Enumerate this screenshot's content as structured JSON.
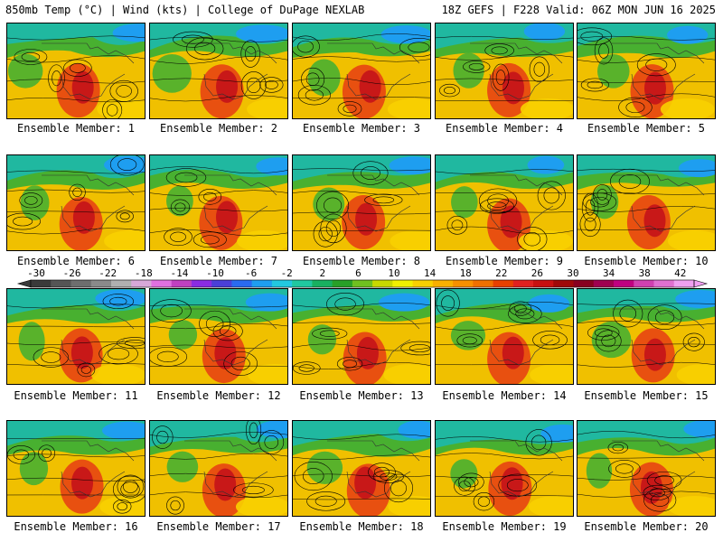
{
  "header": {
    "left": "850mb Temp (°C) | Wind (kts) | College of DuPage NEXLAB",
    "right": "18Z GEFS | F228 Valid: 06Z MON JUN 16 2025"
  },
  "members": [
    {
      "label": "Ensemble Member: 1"
    },
    {
      "label": "Ensemble Member: 2"
    },
    {
      "label": "Ensemble Member: 3"
    },
    {
      "label": "Ensemble Member: 4"
    },
    {
      "label": "Ensemble Member: 5"
    },
    {
      "label": "Ensemble Member: 6"
    },
    {
      "label": "Ensemble Member: 7"
    },
    {
      "label": "Ensemble Member: 8"
    },
    {
      "label": "Ensemble Member: 9"
    },
    {
      "label": "Ensemble Member: 10"
    },
    {
      "label": "Ensemble Member: 11"
    },
    {
      "label": "Ensemble Member: 12"
    },
    {
      "label": "Ensemble Member: 13"
    },
    {
      "label": "Ensemble Member: 14"
    },
    {
      "label": "Ensemble Member: 15"
    },
    {
      "label": "Ensemble Member: 16"
    },
    {
      "label": "Ensemble Member: 17"
    },
    {
      "label": "Ensemble Member: 18"
    },
    {
      "label": "Ensemble Member: 19"
    },
    {
      "label": "Ensemble Member: 20"
    }
  ],
  "colorbar": {
    "ticks": [
      "-30",
      "-26",
      "-22",
      "-18",
      "-14",
      "-10",
      "-6",
      "-2",
      "2",
      "6",
      "10",
      "14",
      "18",
      "22",
      "26",
      "30",
      "34",
      "38",
      "42"
    ],
    "colors": [
      "#3a3a3a",
      "#555555",
      "#6e6e6e",
      "#8a8a8a",
      "#b0b0b0",
      "#d8a8d8",
      "#e070e0",
      "#c040c0",
      "#8a2be2",
      "#4b3fd8",
      "#2a6af0",
      "#1e9ef0",
      "#22c8e0",
      "#20c8a0",
      "#18b060",
      "#28a028",
      "#70c020",
      "#c8d800",
      "#f0f000",
      "#f8d000",
      "#f8b000",
      "#f89000",
      "#f07000",
      "#e84000",
      "#e02020",
      "#c81010",
      "#a00808",
      "#880020",
      "#a00050",
      "#c00080",
      "#d040b0",
      "#e070d0",
      "#f0a0f0"
    ]
  },
  "map_colors": {
    "land": "#f0c000",
    "warm": "#e85010",
    "hot": "#c81818",
    "cool": "#20b8a0",
    "cold": "#1e9ef0",
    "green": "#48b030",
    "contour": "#000000"
  }
}
